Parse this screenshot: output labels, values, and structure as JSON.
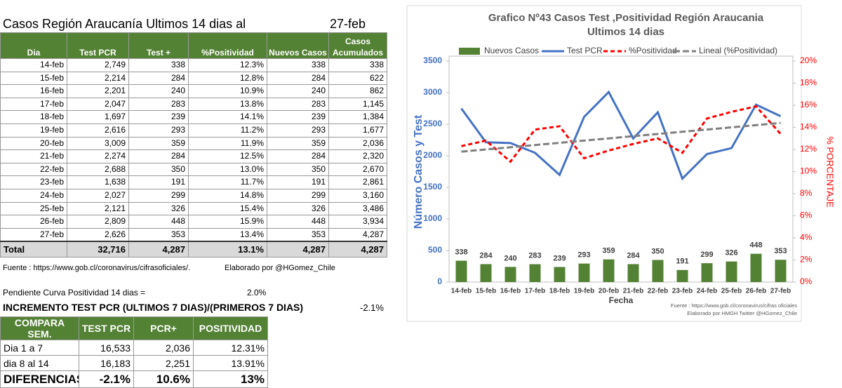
{
  "sheet": {
    "title": "Casos Región Araucanía Ultimos 14 dias al",
    "date": "27-feb",
    "table": {
      "header": [
        "Dia",
        "Test PCR",
        "Test +",
        "%Positividad",
        "Nuevos Casos",
        "Casos Acumulados"
      ],
      "rows": [
        [
          "14-feb",
          "2,749",
          "338",
          "12.3%",
          "338",
          "338"
        ],
        [
          "15-feb",
          "2,214",
          "284",
          "12.8%",
          "284",
          "622"
        ],
        [
          "16-feb",
          "2,201",
          "240",
          "10.9%",
          "240",
          "862"
        ],
        [
          "17-feb",
          "2,047",
          "283",
          "13.8%",
          "283",
          "1,145"
        ],
        [
          "18-feb",
          "1,697",
          "239",
          "14.1%",
          "239",
          "1,384"
        ],
        [
          "19-feb",
          "2,616",
          "293",
          "11.2%",
          "293",
          "1,677"
        ],
        [
          "20-feb",
          "3,009",
          "359",
          "11.9%",
          "359",
          "2,036"
        ],
        [
          "21-feb",
          "2,274",
          "284",
          "12.5%",
          "284",
          "2,320"
        ],
        [
          "22-feb",
          "2,688",
          "350",
          "13.0%",
          "350",
          "2,670"
        ],
        [
          "23-feb",
          "1,638",
          "191",
          "11.7%",
          "191",
          "2,861"
        ],
        [
          "24-feb",
          "2,027",
          "299",
          "14.8%",
          "299",
          "3,160"
        ],
        [
          "25-feb",
          "2,121",
          "326",
          "15.4%",
          "326",
          "3,486"
        ],
        [
          "26-feb",
          "2,809",
          "448",
          "15.9%",
          "448",
          "3,934"
        ],
        [
          "27-feb",
          "2,626",
          "353",
          "13.4%",
          "353",
          "4,287"
        ]
      ],
      "total": [
        "Total",
        "32,716",
        "4,287",
        "13.1%",
        "4,287",
        "4,287"
      ]
    },
    "source": "Fuente : https://www.gob.cl/coronavirus/cifrasoficiales/.",
    "author": "Elaborado por  @HGomez_Chile",
    "slope": {
      "label": "Pendiente Curva Positividad 14 dias =",
      "value": "2.0%"
    },
    "increment": {
      "label": "INCREMENTO TEST PCR (ULTIMOS 7 DIAS)/(PRIMEROS 7 DIAS)",
      "value": "-2.1%"
    },
    "compare": {
      "header": [
        "COMPARA SEM.",
        "TEST PCR",
        "PCR+",
        "POSITIVIDAD"
      ],
      "rows": [
        [
          "Dia 1 a 7",
          "16,533",
          "2,036",
          "12.31%"
        ],
        [
          "dia 8 al 14",
          "16,183",
          "2,251",
          "13.91%"
        ],
        [
          "DIFERENCIAS",
          "-2.1%",
          "10.6%",
          "13%"
        ]
      ]
    }
  },
  "chart_data": {
    "type": "bar",
    "title": [
      "Grafico Nº43 Casos Test ,Positividad Región Araucania",
      "Ultimos 14 dias"
    ],
    "x_label": "Fecha",
    "y_label": "Número Casos y Test",
    "y2_label": "% PORCENTAJE",
    "categories": [
      "14-feb",
      "15-feb",
      "16-feb",
      "17-feb",
      "18-feb",
      "19-feb",
      "20-feb",
      "21-feb",
      "22-feb",
      "23-feb",
      "24-feb",
      "25-feb",
      "26-feb",
      "27-feb"
    ],
    "series": [
      {
        "name": "Nuevos Casos",
        "type": "bar",
        "color": "#548235",
        "values": [
          338,
          284,
          240,
          283,
          239,
          293,
          359,
          284,
          350,
          191,
          299,
          326,
          448,
          353
        ]
      },
      {
        "name": "Test PCR",
        "type": "line",
        "color": "#4472c4",
        "values": [
          2749,
          2214,
          2201,
          2047,
          1697,
          2616,
          3009,
          2274,
          2688,
          1638,
          2027,
          2121,
          2809,
          2626
        ]
      },
      {
        "name": "%Positividad",
        "type": "line",
        "axis": "y2",
        "color": "#ff0000",
        "dash": "6,4",
        "values": [
          12.3,
          12.8,
          10.9,
          13.8,
          14.1,
          11.2,
          11.9,
          12.5,
          13.0,
          11.7,
          14.8,
          15.4,
          15.9,
          13.4
        ]
      },
      {
        "name": "Lineal (%Positividad)",
        "type": "line",
        "axis": "y2",
        "color": "#7f7f7f",
        "dash": "9,4",
        "values": [
          11.8,
          12.0,
          12.2,
          12.4,
          12.6,
          12.8,
          13.0,
          13.2,
          13.4,
          13.6,
          13.8,
          14.0,
          14.2,
          14.4
        ]
      }
    ],
    "ylim": [
      0,
      3500
    ],
    "yticks": [
      0,
      500,
      1000,
      1500,
      2000,
      2500,
      3000,
      3500
    ],
    "y2lim": [
      0,
      20
    ],
    "y2ticks": [
      {
        "value": 0,
        "label": "0%"
      },
      {
        "value": 2,
        "label": "2%"
      },
      {
        "value": 4,
        "label": "4%"
      },
      {
        "value": 6,
        "label": "6%"
      },
      {
        "value": 8,
        "label": "8%"
      },
      {
        "value": 10,
        "label": "10%"
      },
      {
        "value": 12,
        "label": "12%"
      },
      {
        "value": 14,
        "label": "14%"
      },
      {
        "value": 16,
        "label": "16%"
      },
      {
        "value": 18,
        "label": "18%"
      },
      {
        "value": 20,
        "label": "20%"
      }
    ],
    "legend": "top",
    "source": [
      "Fuente : https://www.gob.cl/coronavirus/cifras oficiales",
      "Elaborado por HMGH  Twitter @HGomez_Chile"
    ]
  }
}
